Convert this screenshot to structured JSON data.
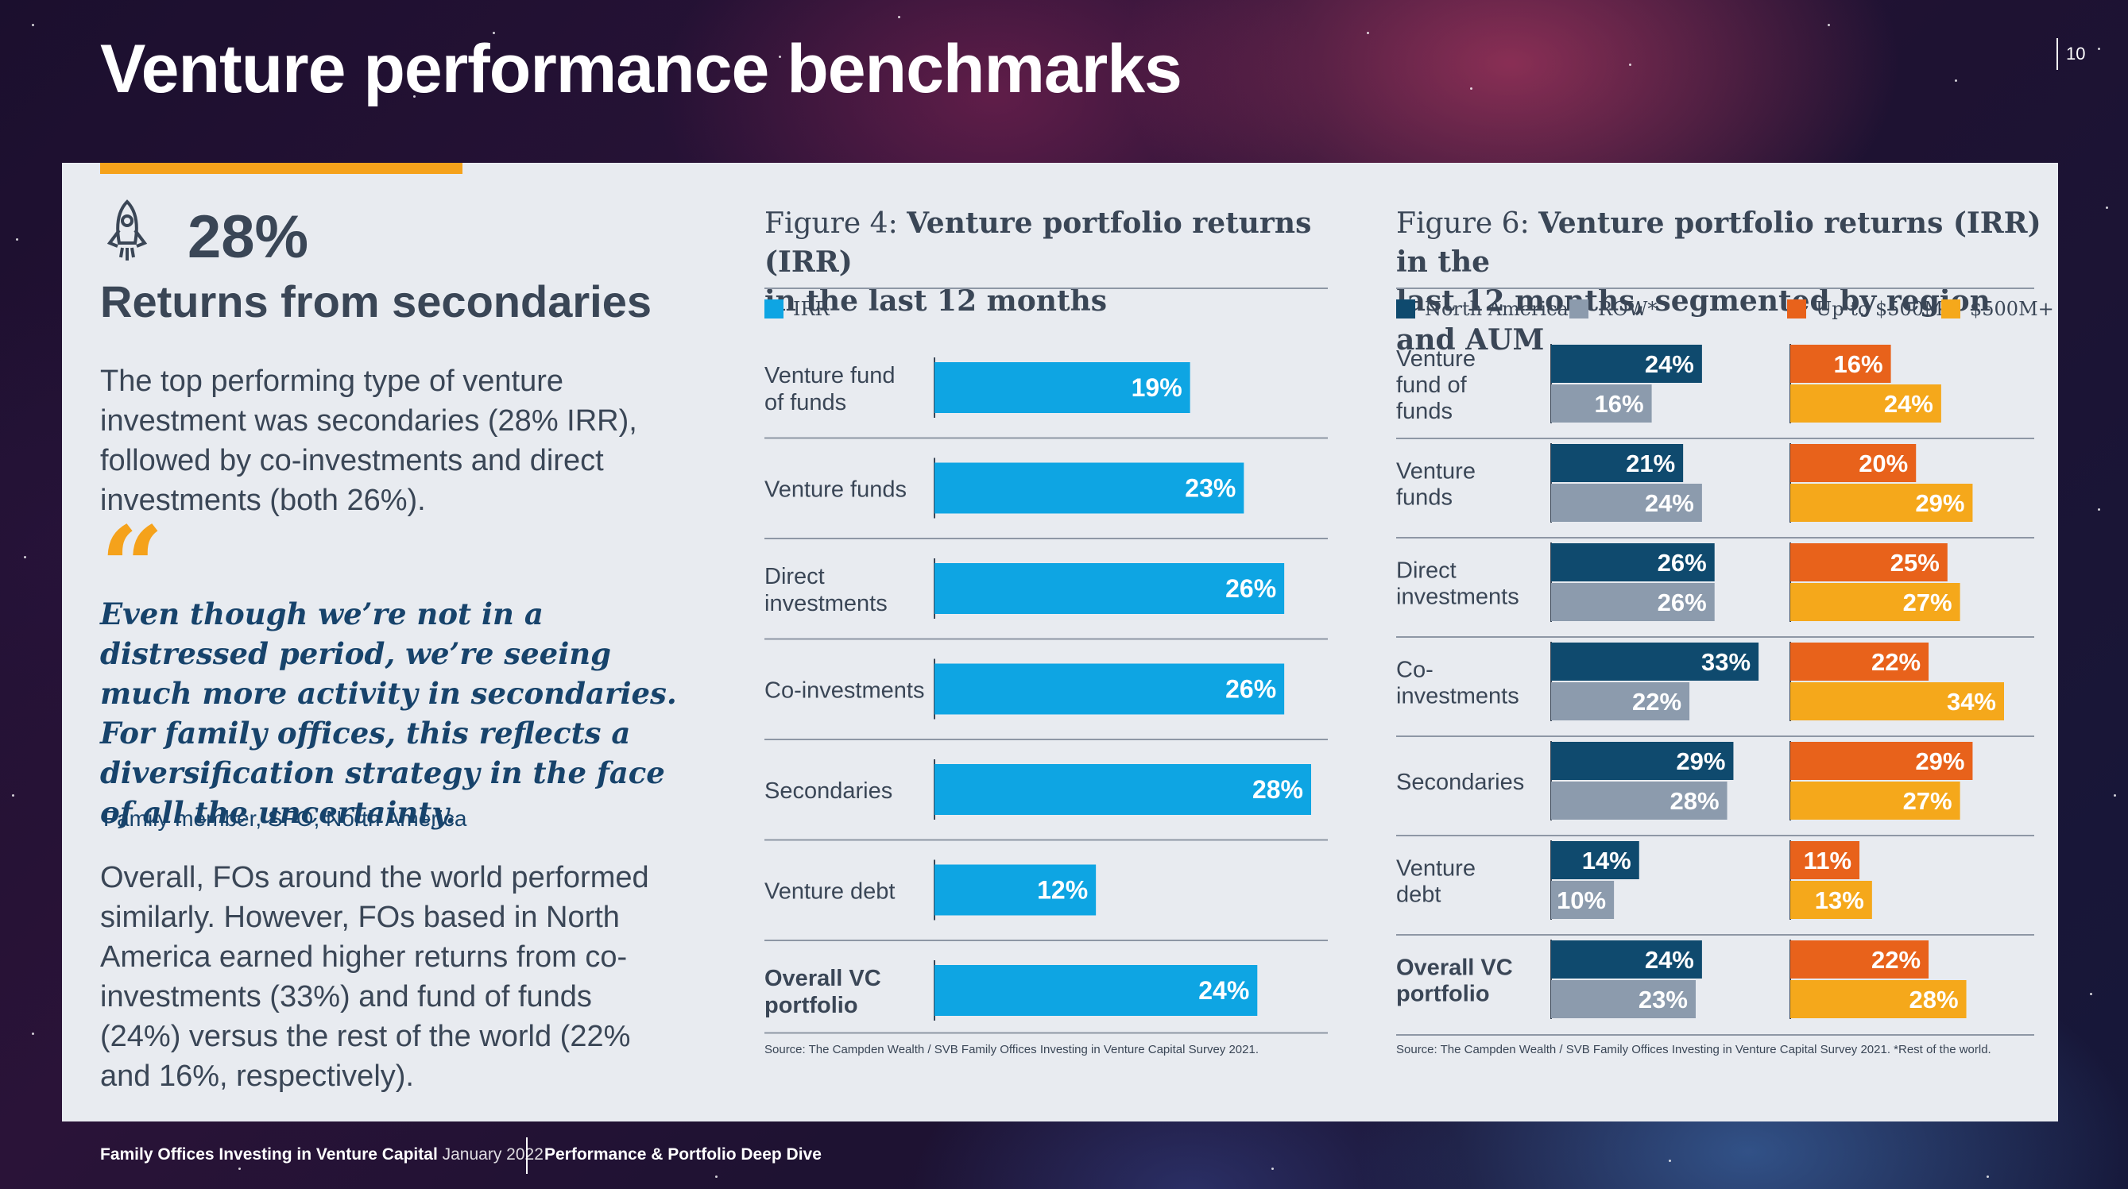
{
  "header": {
    "title": "Venture performance benchmarks",
    "page_number": "10"
  },
  "left": {
    "stat_value": "28%",
    "stat_label": "Returns from secondaries",
    "para1": "The top performing type of venture investment was secondaries (28% IRR), followed by co-investments and direct investments (both 26%).",
    "quote_mark": "“",
    "quote": "Even though we’re not in a distressed period, we’re seeing much more activity in secondaries. For family offices, this reflects a diversification strategy in the face of all the uncertainty.",
    "attribution": "Family member, SFO, North America",
    "para2": "Overall, FOs around the world performed similarly. However, FOs based in North America earned higher returns from co-investments (33%) and fund of funds (24%) versus the rest of the world (22% and 16%, respectively)."
  },
  "fig4": {
    "title_prefix": "Figure 4:",
    "title_bold_line1": "Venture portfolio returns (IRR)",
    "title_bold_line2": "in the last 12 months",
    "source": "Source: The Campden Wealth / SVB Family Offices Investing in Venture Capital Survey 2021."
  },
  "fig6": {
    "title_prefix": "Figure 6:",
    "title_bold_line1": "Venture portfolio returns (IRR) in the",
    "title_bold_line2": "last 12 months, segmented by region and AUM",
    "source": "Source: The Campden Wealth / SVB Family Offices Investing in Venture Capital Survey 2021. *Rest of the world."
  },
  "chart_data": [
    {
      "type": "bar",
      "orientation": "horizontal",
      "title": "Figure 4: Venture portfolio returns (IRR) in the last 12 months",
      "categories": [
        "Venture fund of funds",
        "Venture funds",
        "Direct investments",
        "Co-investments",
        "Secondaries",
        "Venture debt",
        "Overall VC portfolio"
      ],
      "category_lines": [
        [
          "Venture fund",
          "of funds"
        ],
        [
          "Venture funds"
        ],
        [
          "Direct",
          "investments"
        ],
        [
          "Co-investments"
        ],
        [
          "Secondaries"
        ],
        [
          "Venture debt"
        ],
        [
          "Overall VC",
          "portfolio"
        ]
      ],
      "bold_categories": [
        false,
        false,
        false,
        false,
        false,
        false,
        true
      ],
      "series": [
        {
          "name": "IRR",
          "color": "#0ea5e3",
          "values": [
            19,
            23,
            26,
            26,
            28,
            12,
            24
          ]
        }
      ],
      "value_suffix": "%",
      "xlim": [
        0,
        28
      ]
    },
    {
      "type": "bar",
      "orientation": "horizontal",
      "title": "Figure 6: Venture portfolio returns (IRR) in the last 12 months, segmented by region and AUM",
      "categories": [
        "Venture fund of funds",
        "Venture funds",
        "Direct investments",
        "Co-investments",
        "Secondaries",
        "Venture debt",
        "Overall VC portfolio"
      ],
      "category_lines": [
        [
          "Venture",
          "fund of",
          "funds"
        ],
        [
          "Venture",
          "funds"
        ],
        [
          "Direct",
          "investments"
        ],
        [
          "Co-",
          "investments"
        ],
        [
          "Secondaries"
        ],
        [
          "Venture",
          "debt"
        ],
        [
          "Overall VC",
          "portfolio"
        ]
      ],
      "bold_categories": [
        false,
        false,
        false,
        false,
        false,
        false,
        true
      ],
      "groups": [
        {
          "name": "Region",
          "series": [
            {
              "name": "North America",
              "color": "#0f4a6e",
              "values": [
                24,
                21,
                26,
                33,
                29,
                14,
                24
              ]
            },
            {
              "name": "ROW*",
              "color": "#8c9bad",
              "values": [
                16,
                24,
                26,
                22,
                28,
                10,
                23
              ]
            }
          ]
        },
        {
          "name": "AUM",
          "series": [
            {
              "name": "Up to $500M",
              "color": "#e8621b",
              "values": [
                16,
                20,
                25,
                22,
                29,
                11,
                22
              ]
            },
            {
              "name": "$500M+",
              "color": "#f5a81b",
              "values": [
                24,
                29,
                27,
                34,
                27,
                13,
                28
              ]
            }
          ]
        }
      ],
      "value_suffix": "%",
      "xlim": [
        0,
        34
      ]
    }
  ],
  "footer": {
    "report": "Family Offices Investing in Venture Capital",
    "date": "January 2022",
    "section": "Performance & Portfolio Deep Dive"
  }
}
